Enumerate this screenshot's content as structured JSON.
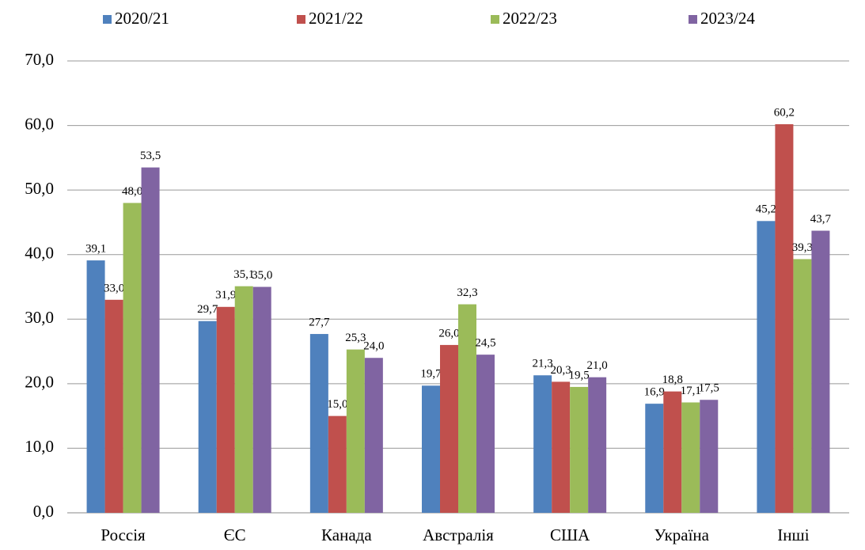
{
  "chart_data": {
    "type": "bar",
    "categories": [
      "Россія",
      "ЄС",
      "Канада",
      "Австралія",
      "США",
      "Україна",
      "Інші"
    ],
    "series": [
      {
        "name": "2020/21",
        "color": "#4f81bd",
        "values": [
          39.1,
          29.7,
          27.7,
          19.7,
          21.3,
          16.9,
          45.2
        ],
        "value_labels": [
          "39,1",
          "29,7",
          "27,7",
          "19,7",
          "21,3",
          "16,9",
          "45,2"
        ]
      },
      {
        "name": "2021/22",
        "color": "#c0504d",
        "values": [
          33.0,
          31.9,
          15.0,
          26.0,
          20.3,
          18.8,
          60.2
        ],
        "value_labels": [
          "33,0",
          "31,9",
          "15,0",
          "26,0",
          "20,3",
          "18,8",
          "60,2"
        ]
      },
      {
        "name": "2022/23",
        "color": "#9bbb59",
        "values": [
          48.0,
          35.1,
          25.3,
          32.3,
          19.5,
          17.1,
          39.3
        ],
        "value_labels": [
          "48,0",
          "35,1",
          "25,3",
          "32,3",
          "19,5",
          "17,1",
          "39,3"
        ]
      },
      {
        "name": "2023/24",
        "color": "#8064a2",
        "values": [
          53.5,
          35.0,
          24.0,
          24.5,
          21.0,
          17.5,
          43.7
        ],
        "value_labels": [
          "53,5",
          "35,0",
          "24,0",
          "24,5",
          "21,0",
          "17,5",
          "43,7"
        ]
      }
    ],
    "ylim": [
      0,
      70
    ],
    "yticks": [
      {
        "value": 0,
        "label": "0,0"
      },
      {
        "value": 10,
        "label": "10,0"
      },
      {
        "value": 20,
        "label": "20,0"
      },
      {
        "value": 30,
        "label": "30,0"
      },
      {
        "value": 40,
        "label": "40,0"
      },
      {
        "value": 50,
        "label": "50,0"
      },
      {
        "value": 60,
        "label": "60,0"
      },
      {
        "value": 70,
        "label": "70,0"
      }
    ],
    "grid": true,
    "legend": "top"
  }
}
